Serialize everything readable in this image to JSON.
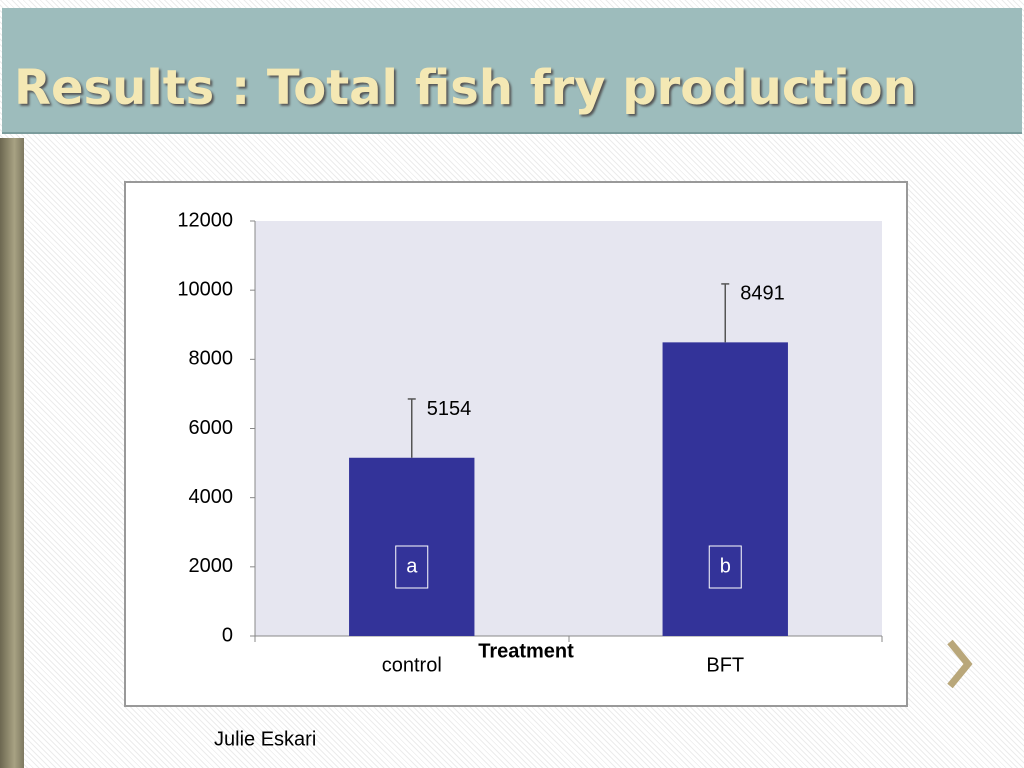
{
  "slide_title": "Results : Total fish fry production",
  "author": "Julie Eskari",
  "chart_data": {
    "type": "bar",
    "categories": [
      "control",
      "BFT"
    ],
    "values": [
      5154,
      8491
    ],
    "errors": [
      1700,
      1690
    ],
    "group_labels": [
      "a",
      "b"
    ],
    "xlabel": "Treatment",
    "color": "#333399",
    "ylim": [
      0,
      12000
    ],
    "yticks": [
      0,
      2000,
      4000,
      6000,
      8000,
      10000,
      12000
    ],
    "grid": false
  }
}
